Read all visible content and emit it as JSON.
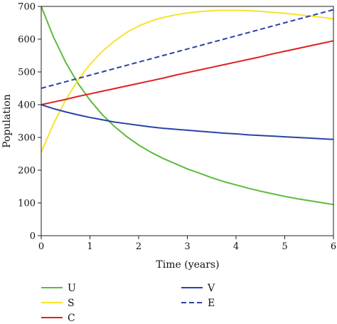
{
  "chart_data": {
    "type": "line",
    "title": "",
    "xlabel": "Time (years)",
    "ylabel": "Population",
    "xlim": [
      0,
      6
    ],
    "ylim": [
      0,
      700
    ],
    "xticks": [
      "0",
      "1",
      "2",
      "3",
      "4",
      "5",
      "6"
    ],
    "yticks": [
      "0",
      "100",
      "200",
      "300",
      "400",
      "500",
      "600",
      "700"
    ],
    "grid": false,
    "legend_position": "bottom",
    "x": [
      0,
      0.25,
      0.5,
      0.75,
      1,
      1.25,
      1.5,
      1.75,
      2,
      2.25,
      2.5,
      2.75,
      3,
      3.25,
      3.5,
      3.75,
      4,
      4.25,
      4.5,
      4.75,
      5,
      5.25,
      5.5,
      5.75,
      6
    ],
    "series": [
      {
        "name": "U",
        "color": "#5cbb3c",
        "dash": "solid",
        "values": [
          700,
          607,
          530,
          466,
          414,
          370,
          334,
          303,
          277,
          255,
          236,
          220,
          204,
          191,
          177,
          165,
          155,
          145,
          136,
          128,
          120,
          113,
          107,
          101,
          95
        ]
      },
      {
        "name": "S",
        "color": "#f5e42e",
        "dash": "solid",
        "values": [
          255,
          341,
          414,
          474,
          523,
          562,
          594,
          620,
          640,
          655,
          666,
          674,
          680,
          684,
          687,
          688,
          688,
          687,
          685,
          682,
          679,
          675,
          671,
          667,
          662
        ]
      },
      {
        "name": "C",
        "color": "#e02020",
        "dash": "solid",
        "values": [
          400,
          408,
          416,
          425,
          433,
          441,
          449,
          457,
          465,
          473,
          481,
          490,
          498,
          506,
          514,
          522,
          530,
          538,
          546,
          555,
          563,
          571,
          579,
          587,
          595
        ]
      },
      {
        "name": "V",
        "color": "#2a43a8",
        "dash": "solid",
        "values": [
          400,
          388,
          378,
          369,
          361,
          354,
          347,
          342,
          337,
          332,
          328,
          325,
          322,
          319,
          316,
          313,
          311,
          308,
          306,
          304,
          302,
          300,
          298,
          296,
          294
        ]
      },
      {
        "name": "E",
        "color": "#2a43a8",
        "dash": "dashed",
        "values": [
          450,
          460,
          470,
          480,
          490,
          500,
          510,
          520,
          530,
          540,
          550,
          560,
          570,
          580,
          590,
          600,
          610,
          620,
          630,
          640,
          650,
          660,
          670,
          680,
          690
        ]
      }
    ]
  }
}
